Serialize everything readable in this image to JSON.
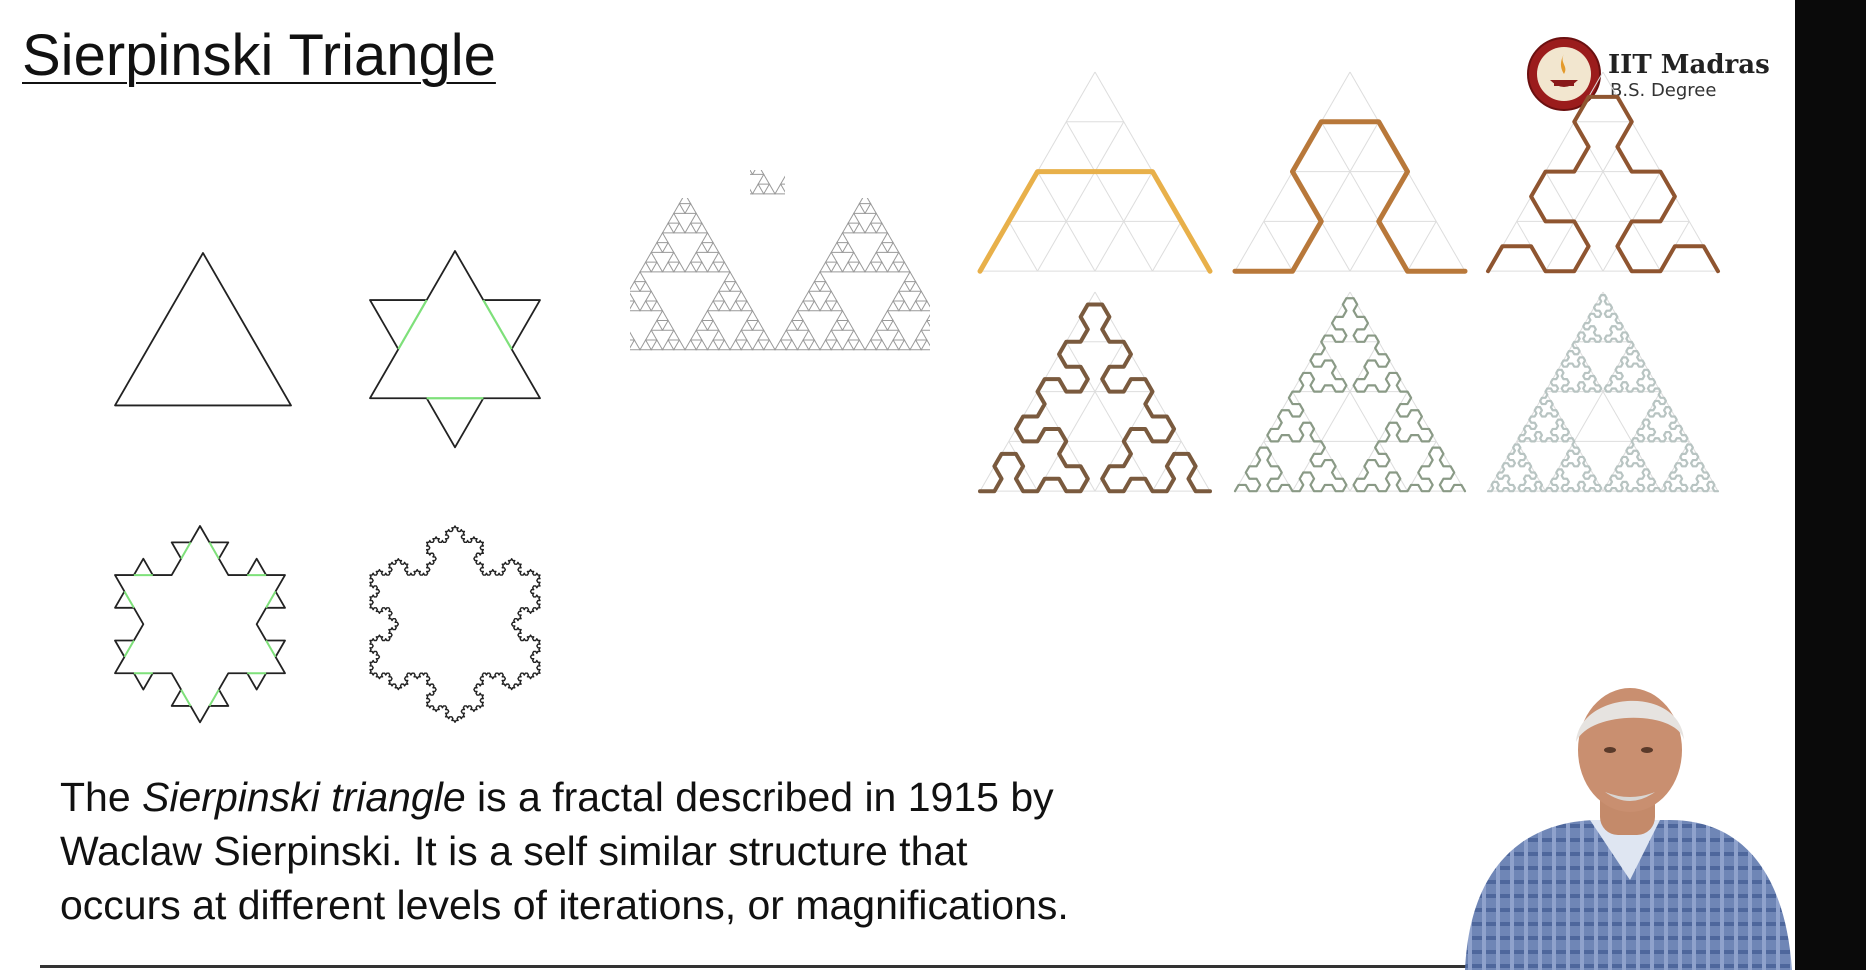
{
  "slide": {
    "title": "Sierpinski Triangle",
    "logo": {
      "name": "IIT Madras",
      "subtitle": "B.S. Degree"
    },
    "description": {
      "part1": "The ",
      "italic": "Sierpinski triangle",
      "part2": " is a fractal described in 1915 by",
      "line2": "Waclaw Sierpinski. It is a self similar structure that",
      "line3": "occurs at different levels of iterations, or magnifications."
    }
  },
  "figures": {
    "koch_snowflake_iterations": [
      0,
      1,
      2,
      4
    ],
    "sierpinski_sieve_depth": 5,
    "arrowhead_curve_orders": [
      1,
      2,
      3,
      4,
      5,
      6
    ],
    "arrowhead_colors": [
      "#e8b04a",
      "#b8783a",
      "#8f5530",
      "#7a5a3e",
      "#8a9a86",
      "#b8c4c2"
    ]
  },
  "colors": {
    "koch_outline": "#222222",
    "koch_highlight": "#7ee07a",
    "sierpinski": "#999999",
    "grid": "#dddddd"
  }
}
